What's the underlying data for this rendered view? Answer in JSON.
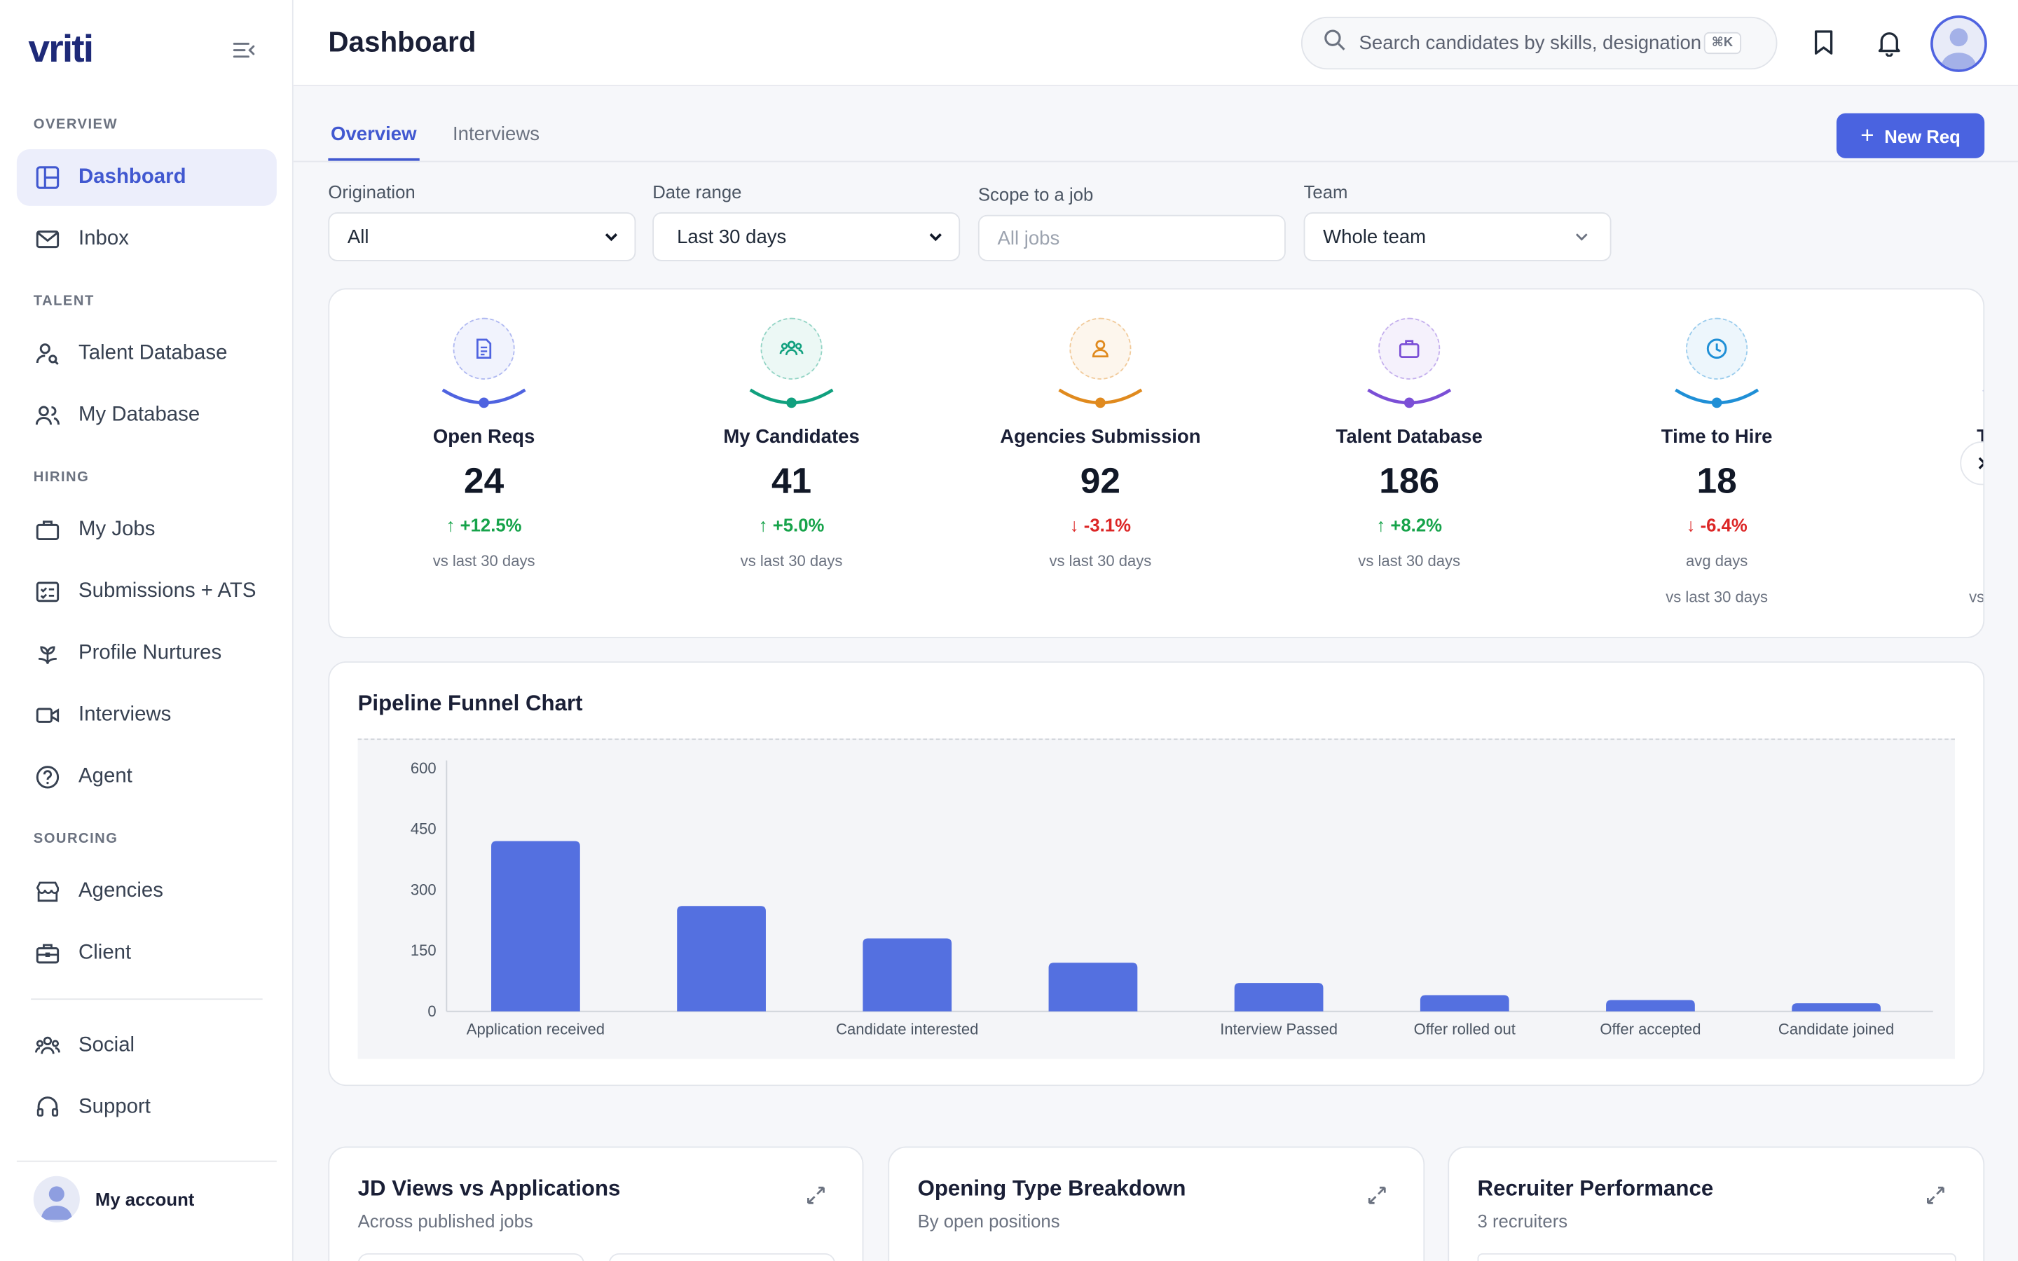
{
  "app": {
    "logo": "vriti",
    "page_title": "Dashboard"
  },
  "sidebar": {
    "sections": [
      "OVERVIEW",
      "TALENT",
      "HIRING",
      "SOURCING"
    ],
    "items": [
      {
        "label": "Dashboard",
        "icon": "layout-icon",
        "active": true
      },
      {
        "label": "Inbox",
        "icon": "mail-icon"
      },
      {
        "label": "Talent Database",
        "icon": "user-search-icon"
      },
      {
        "label": "My Database",
        "icon": "users-icon"
      },
      {
        "label": "My Jobs",
        "icon": "briefcase-icon"
      },
      {
        "label": "Submissions + ATS",
        "icon": "checklist-icon"
      },
      {
        "label": "Profile Nurtures",
        "icon": "sprout-icon"
      },
      {
        "label": "Interviews",
        "icon": "video-icon"
      },
      {
        "label": "Agent",
        "icon": "help-circle-icon"
      },
      {
        "label": "Agencies",
        "icon": "store-icon"
      },
      {
        "label": "Client",
        "icon": "briefcase-client-icon"
      },
      {
        "label": "Social",
        "icon": "community-icon"
      },
      {
        "label": "Support",
        "icon": "headset-icon"
      }
    ],
    "account_label": "My account"
  },
  "header": {
    "search_placeholder": "Search candidates by skills, designation",
    "shortcut": "⌘K"
  },
  "tabs": [
    {
      "label": "Overview",
      "active": true
    },
    {
      "label": "Interviews"
    }
  ],
  "new_req_label": "New Req",
  "filters": {
    "origination": {
      "label": "Origination",
      "value": "All"
    },
    "date_range": {
      "label": "Date range",
      "value": "Last 30 days"
    },
    "scope": {
      "label": "Scope to a job",
      "placeholder": "All jobs"
    },
    "team": {
      "label": "Team",
      "value": "Whole team"
    }
  },
  "kpis": [
    {
      "title": "Open Reqs",
      "value": "24",
      "change": "+12.5%",
      "direction": "up",
      "sub": "vs last 30 days",
      "sub2": "",
      "color": "#4f63e0",
      "icon": "document-icon"
    },
    {
      "title": "My Candidates",
      "value": "41",
      "change": "+5.0%",
      "direction": "up",
      "sub": "vs last 30 days",
      "sub2": "",
      "color": "#10a07e",
      "icon": "users-icon"
    },
    {
      "title": "Agencies Submission",
      "value": "92",
      "change": "-3.1%",
      "direction": "down",
      "sub": "vs last 30 days",
      "sub2": "",
      "color": "#e08a1e",
      "icon": "user-icon"
    },
    {
      "title": "Talent Database",
      "value": "186",
      "change": "+8.2%",
      "direction": "up",
      "sub": "vs last 30 days",
      "sub2": "",
      "color": "#7b4fd6",
      "icon": "briefcase-icon"
    },
    {
      "title": "Time to Hire",
      "value": "18",
      "change": "-6.4%",
      "direction": "down",
      "sub": "avg days",
      "sub2": "vs last 30 days",
      "color": "#1f8fd6",
      "icon": "clock-icon"
    }
  ],
  "kpi_peek": {
    "title": "T",
    "sub": "vs"
  },
  "chart_data": {
    "type": "bar",
    "title": "Pipeline Funnel Chart",
    "categories": [
      "Application received",
      "",
      "Candidate interested",
      "",
      "Interview Passed",
      "Offer rolled out",
      "Offer accepted",
      "Candidate joined"
    ],
    "values": [
      420,
      260,
      180,
      120,
      70,
      40,
      28,
      20
    ],
    "yticks": [
      0,
      150,
      300,
      450,
      600
    ],
    "ylim": [
      0,
      600
    ],
    "bar_color": "#5470e0",
    "grid": false
  },
  "bottom_cards": [
    {
      "title": "JD Views vs Applications",
      "sub": "Across published jobs"
    },
    {
      "title": "Opening Type Breakdown",
      "sub": "By open positions"
    },
    {
      "title": "Recruiter Performance",
      "sub": "3 recruiters"
    }
  ]
}
